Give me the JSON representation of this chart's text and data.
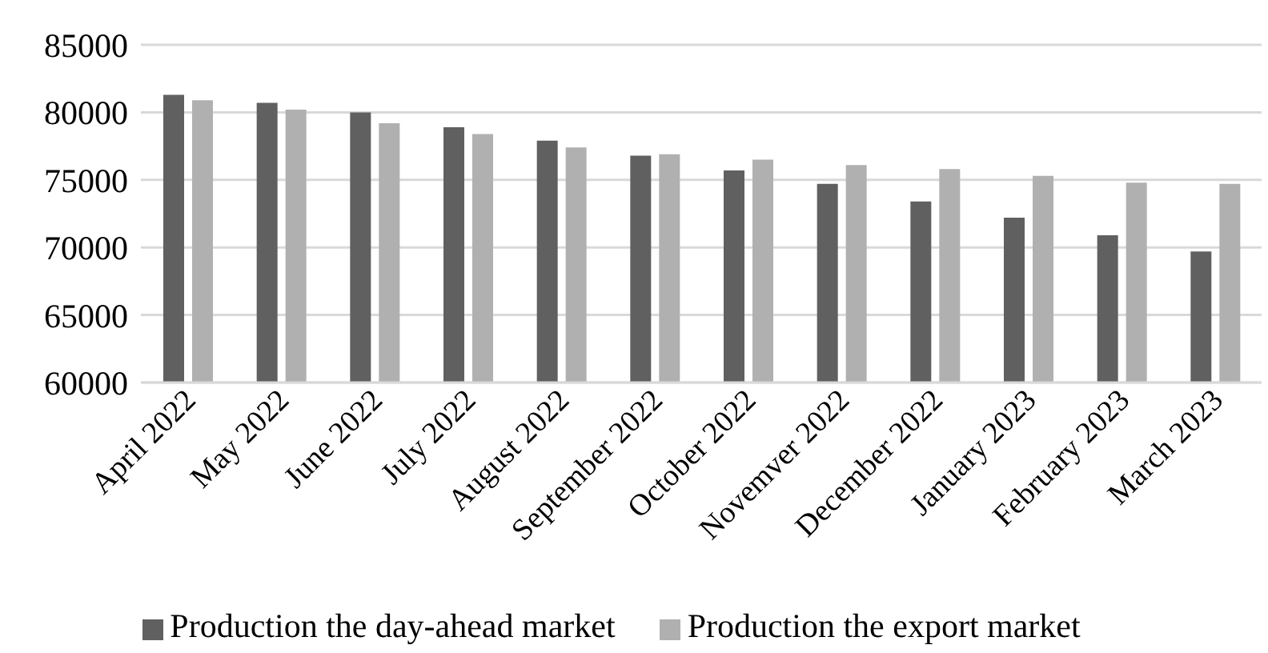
{
  "chart_data": {
    "type": "bar",
    "categories": [
      "April 2022",
      "May 2022",
      "June 2022",
      "July 2022",
      "August 2022",
      "September 2022",
      "October 2022",
      "Novemver 2022",
      "December 2022",
      "January 2023",
      "February 2023",
      "March 2023"
    ],
    "series": [
      {
        "name": "Production the day-ahead market",
        "color": "#606060",
        "values": [
          81300,
          80700,
          80000,
          78900,
          77900,
          76800,
          75700,
          74700,
          73400,
          72200,
          70900,
          69700
        ]
      },
      {
        "name": "Production the export market",
        "color": "#b0b0b0",
        "values": [
          80900,
          80200,
          79200,
          78400,
          77400,
          76900,
          76500,
          76100,
          75800,
          75300,
          74800,
          74700
        ]
      }
    ],
    "ylim": [
      60000,
      85000
    ],
    "yticks": [
      60000,
      65000,
      70000,
      75000,
      80000,
      85000
    ],
    "grid": "y",
    "legend": "bottom"
  }
}
